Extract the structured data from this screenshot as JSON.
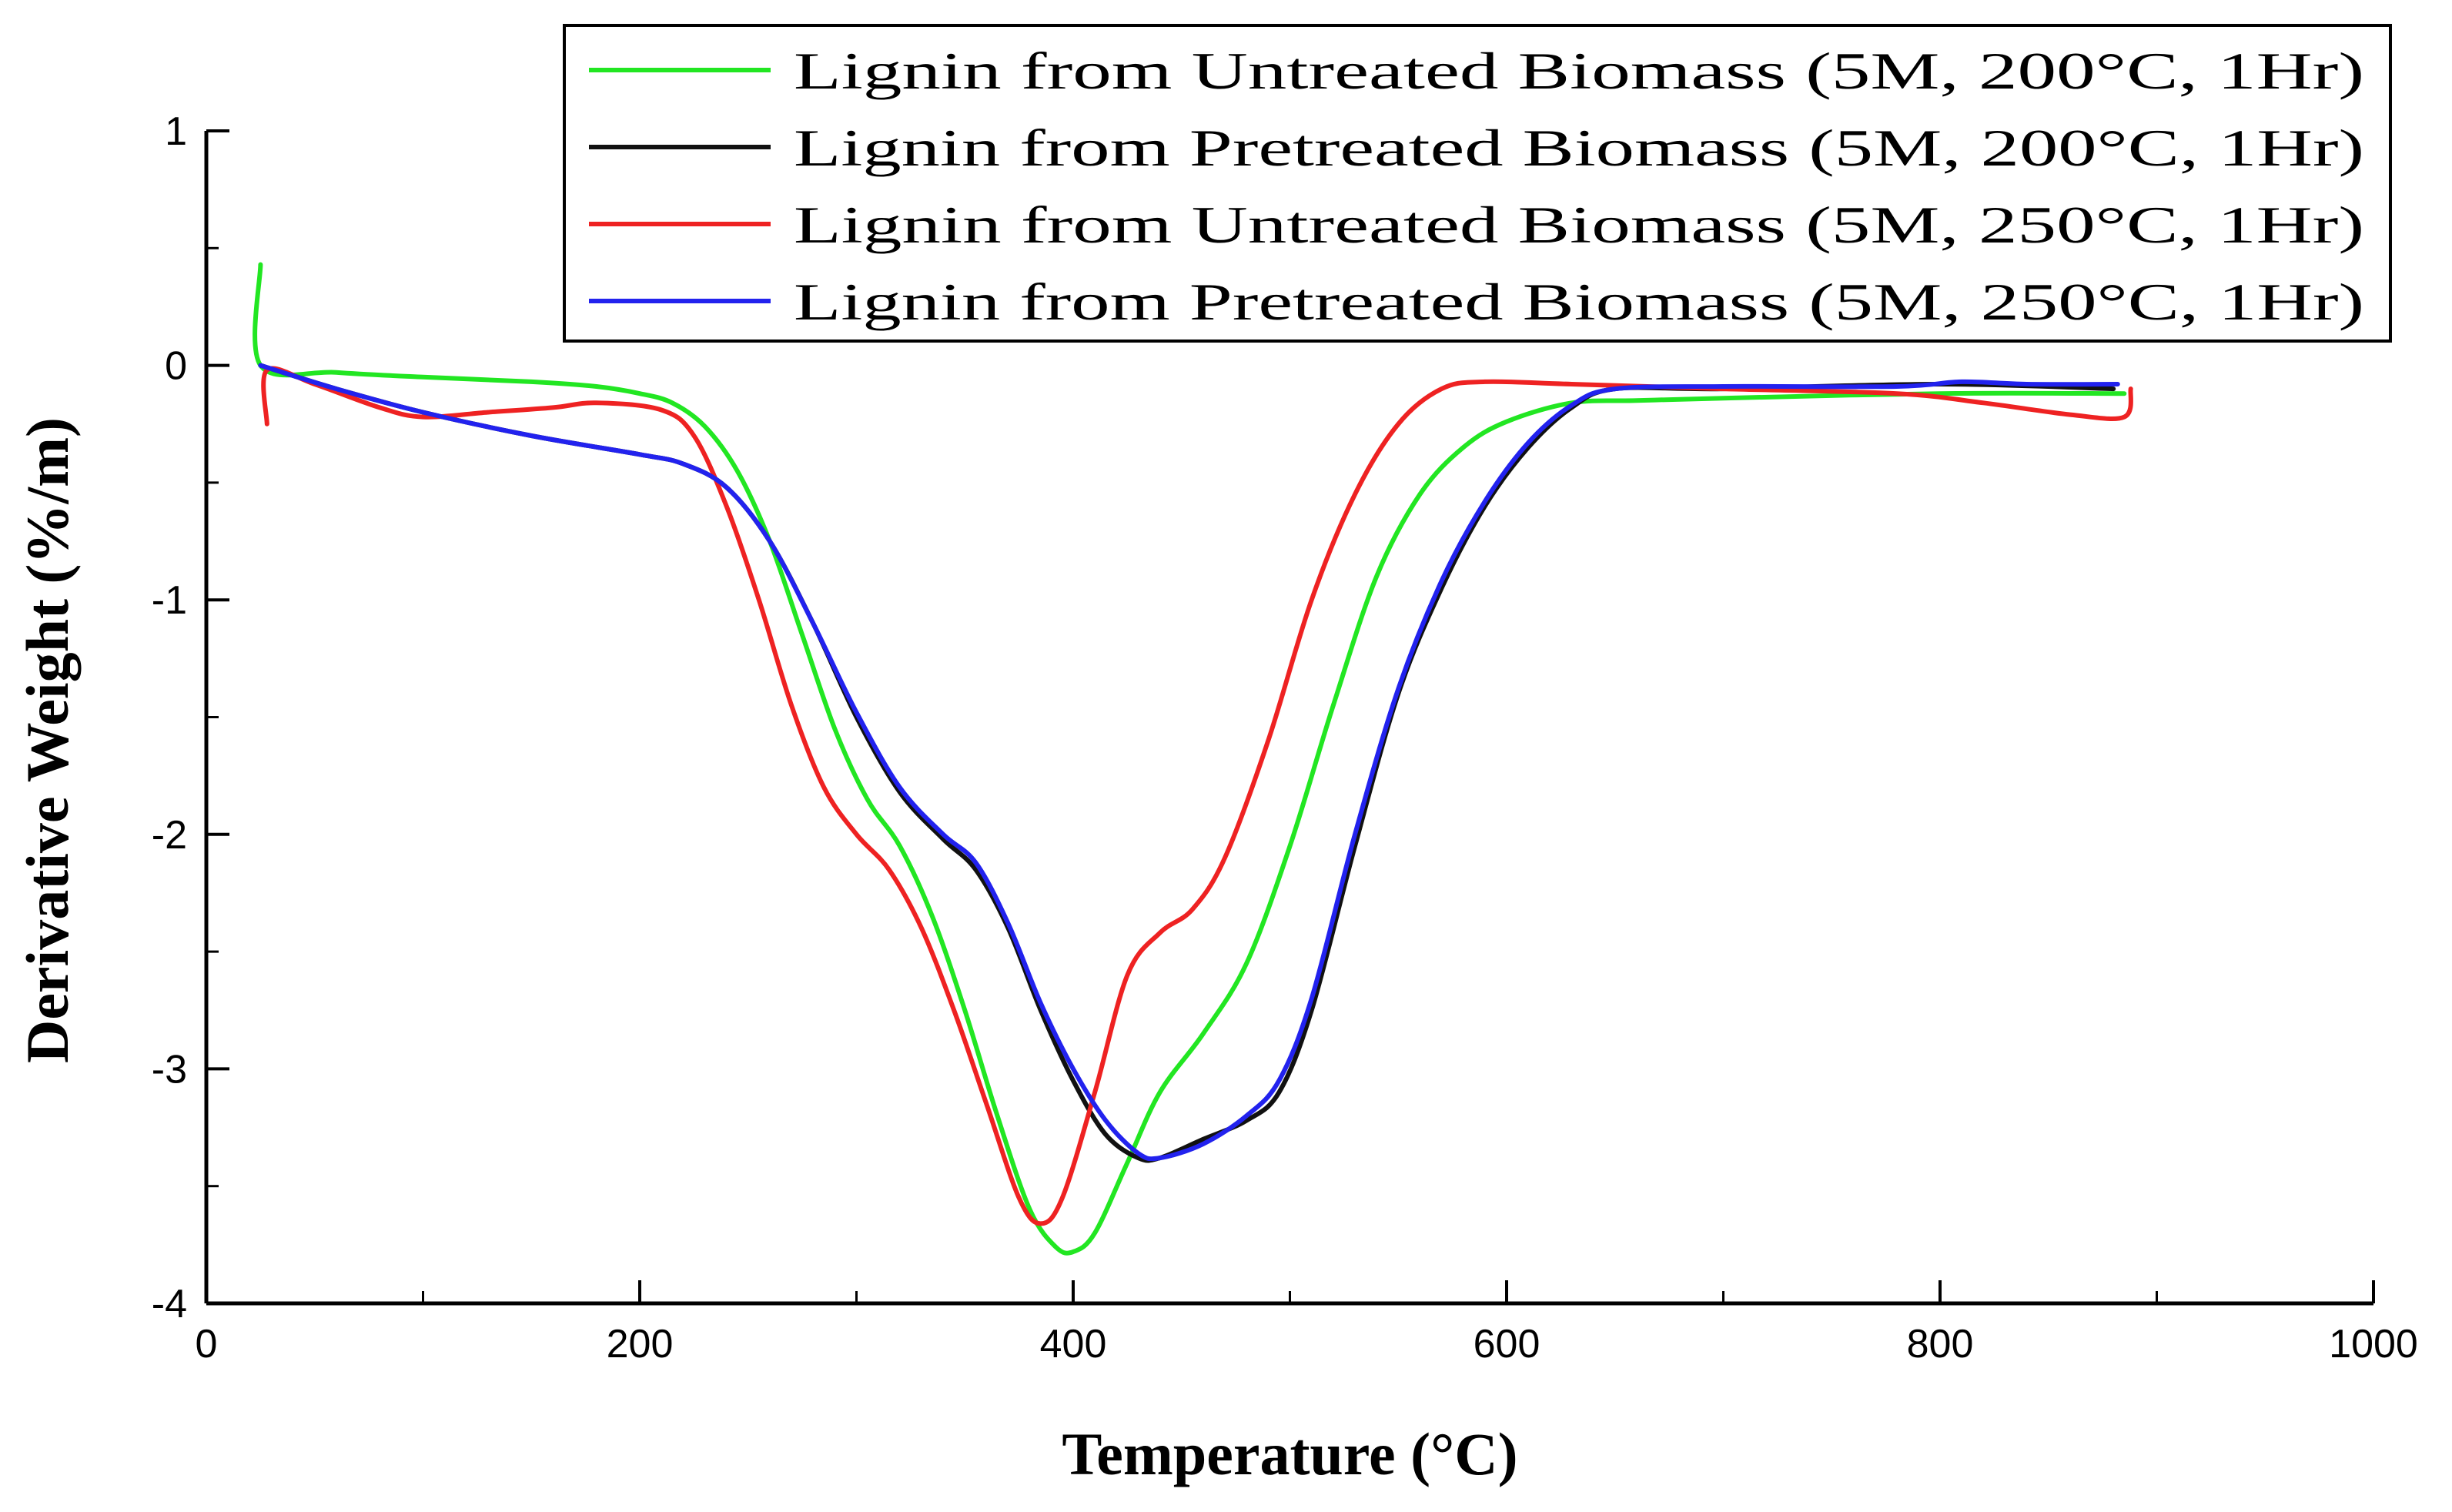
{
  "chart_data": {
    "type": "line",
    "title": "",
    "xlabel": "Temperature (°C)",
    "ylabel": "Derivative Weight (%/m)",
    "xlim": [
      0,
      1000
    ],
    "ylim": [
      -4,
      1
    ],
    "xticks": [
      0,
      200,
      400,
      600,
      800,
      1000
    ],
    "yticks": [
      1,
      0,
      -1,
      -2,
      -3,
      -4
    ],
    "grid": false,
    "legend_position": "top-right",
    "series": [
      {
        "name": "Lignin from Untreated Biomass (5M, 200°C, 1Hr)",
        "color": "#22e622",
        "points": [
          [
            25,
            0.43
          ],
          [
            25,
            0
          ],
          [
            60,
            -0.03
          ],
          [
            100,
            -0.05
          ],
          [
            150,
            -0.07
          ],
          [
            180,
            -0.09
          ],
          [
            200,
            -0.12
          ],
          [
            215,
            -0.16
          ],
          [
            230,
            -0.26
          ],
          [
            245,
            -0.45
          ],
          [
            260,
            -0.75
          ],
          [
            275,
            -1.15
          ],
          [
            290,
            -1.55
          ],
          [
            305,
            -1.85
          ],
          [
            320,
            -2.05
          ],
          [
            335,
            -2.35
          ],
          [
            350,
            -2.75
          ],
          [
            365,
            -3.2
          ],
          [
            380,
            -3.6
          ],
          [
            392,
            -3.76
          ],
          [
            400,
            -3.78
          ],
          [
            410,
            -3.7
          ],
          [
            425,
            -3.4
          ],
          [
            440,
            -3.1
          ],
          [
            460,
            -2.85
          ],
          [
            480,
            -2.55
          ],
          [
            500,
            -2.05
          ],
          [
            520,
            -1.45
          ],
          [
            540,
            -0.9
          ],
          [
            560,
            -0.55
          ],
          [
            580,
            -0.35
          ],
          [
            600,
            -0.24
          ],
          [
            630,
            -0.16
          ],
          [
            660,
            -0.15
          ],
          [
            700,
            -0.14
          ],
          [
            800,
            -0.12
          ],
          [
            885,
            -0.12
          ]
        ]
      },
      {
        "name": "Lignin from Pretreated Biomass (5M, 200°C, 1Hr)",
        "color": "#111111",
        "points": [
          [
            25,
            0
          ],
          [
            60,
            -0.1
          ],
          [
            100,
            -0.2
          ],
          [
            150,
            -0.3
          ],
          [
            200,
            -0.38
          ],
          [
            220,
            -0.42
          ],
          [
            240,
            -0.52
          ],
          [
            260,
            -0.75
          ],
          [
            280,
            -1.1
          ],
          [
            300,
            -1.5
          ],
          [
            320,
            -1.82
          ],
          [
            340,
            -2.02
          ],
          [
            355,
            -2.15
          ],
          [
            370,
            -2.4
          ],
          [
            385,
            -2.75
          ],
          [
            400,
            -3.05
          ],
          [
            415,
            -3.28
          ],
          [
            430,
            -3.38
          ],
          [
            440,
            -3.38
          ],
          [
            460,
            -3.3
          ],
          [
            480,
            -3.22
          ],
          [
            495,
            -3.1
          ],
          [
            510,
            -2.75
          ],
          [
            530,
            -2.05
          ],
          [
            550,
            -1.4
          ],
          [
            570,
            -0.95
          ],
          [
            590,
            -0.6
          ],
          [
            610,
            -0.35
          ],
          [
            630,
            -0.18
          ],
          [
            650,
            -0.1
          ],
          [
            700,
            -0.1
          ],
          [
            800,
            -0.08
          ],
          [
            880,
            -0.1
          ]
        ]
      },
      {
        "name": "Lignin from Untreated Biomass (5M, 250°C, 1Hr)",
        "color": "#ee2222",
        "points": [
          [
            28,
            -0.25
          ],
          [
            28,
            -0.02
          ],
          [
            50,
            -0.08
          ],
          [
            80,
            -0.18
          ],
          [
            100,
            -0.22
          ],
          [
            130,
            -0.2
          ],
          [
            160,
            -0.18
          ],
          [
            180,
            -0.16
          ],
          [
            210,
            -0.19
          ],
          [
            225,
            -0.3
          ],
          [
            240,
            -0.6
          ],
          [
            255,
            -1.0
          ],
          [
            270,
            -1.45
          ],
          [
            285,
            -1.8
          ],
          [
            300,
            -2.0
          ],
          [
            315,
            -2.15
          ],
          [
            330,
            -2.4
          ],
          [
            345,
            -2.75
          ],
          [
            360,
            -3.15
          ],
          [
            375,
            -3.55
          ],
          [
            385,
            -3.66
          ],
          [
            395,
            -3.55
          ],
          [
            410,
            -3.1
          ],
          [
            425,
            -2.6
          ],
          [
            440,
            -2.42
          ],
          [
            455,
            -2.32
          ],
          [
            470,
            -2.1
          ],
          [
            490,
            -1.6
          ],
          [
            510,
            -1.0
          ],
          [
            530,
            -0.55
          ],
          [
            550,
            -0.25
          ],
          [
            570,
            -0.1
          ],
          [
            590,
            -0.07
          ],
          [
            630,
            -0.08
          ],
          [
            700,
            -0.1
          ],
          [
            780,
            -0.12
          ],
          [
            820,
            -0.16
          ],
          [
            860,
            -0.21
          ],
          [
            885,
            -0.22
          ],
          [
            888,
            -0.1
          ]
        ]
      },
      {
        "name": "Lignin from Pretreated Biomass (5M, 250°C, 1Hr)",
        "color": "#2222ee",
        "points": [
          [
            25,
            0
          ],
          [
            60,
            -0.1
          ],
          [
            100,
            -0.2
          ],
          [
            150,
            -0.3
          ],
          [
            200,
            -0.38
          ],
          [
            220,
            -0.42
          ],
          [
            240,
            -0.52
          ],
          [
            260,
            -0.75
          ],
          [
            280,
            -1.1
          ],
          [
            300,
            -1.48
          ],
          [
            320,
            -1.8
          ],
          [
            340,
            -2.0
          ],
          [
            355,
            -2.12
          ],
          [
            370,
            -2.38
          ],
          [
            385,
            -2.72
          ],
          [
            400,
            -3.0
          ],
          [
            415,
            -3.22
          ],
          [
            430,
            -3.36
          ],
          [
            440,
            -3.38
          ],
          [
            460,
            -3.32
          ],
          [
            480,
            -3.2
          ],
          [
            495,
            -3.05
          ],
          [
            510,
            -2.7
          ],
          [
            530,
            -2.0
          ],
          [
            550,
            -1.38
          ],
          [
            570,
            -0.92
          ],
          [
            590,
            -0.58
          ],
          [
            610,
            -0.33
          ],
          [
            630,
            -0.17
          ],
          [
            650,
            -0.1
          ],
          [
            700,
            -0.09
          ],
          [
            780,
            -0.09
          ],
          [
            810,
            -0.07
          ],
          [
            840,
            -0.08
          ],
          [
            882,
            -0.08
          ]
        ]
      }
    ]
  }
}
